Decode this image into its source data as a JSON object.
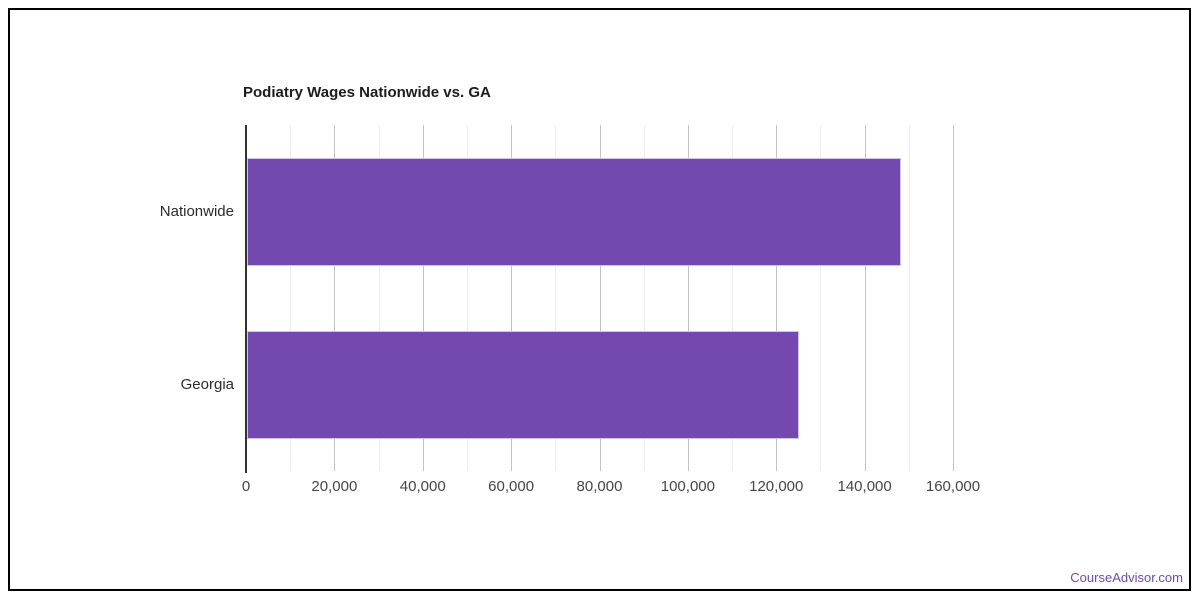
{
  "chart_data": {
    "type": "bar",
    "orientation": "horizontal",
    "title": "Podiatry Wages Nationwide vs. GA",
    "categories": [
      "Nationwide",
      "Georgia"
    ],
    "values": [
      148000,
      125000
    ],
    "xlabel": "",
    "ylabel": "",
    "xlim": [
      0,
      160000
    ],
    "x_major_ticks": [
      0,
      20000,
      40000,
      60000,
      80000,
      100000,
      120000,
      140000,
      160000
    ],
    "x_tick_labels": [
      "0",
      "20,000",
      "40,000",
      "60,000",
      "80,000",
      "100,000",
      "120,000",
      "140,000",
      "160,000"
    ],
    "x_minor_step": 10000,
    "grid": true,
    "legend": "none",
    "colors": {
      "bar_fill": "#7348af",
      "bar_stroke": "#d2c3eb",
      "axis_line": "#333333",
      "gridline_major": "#c2c2c2",
      "gridline_minor": "#ededed",
      "title_text": "#1c1c1c",
      "tick_text": "#454545",
      "category_text": "#2b2b2b"
    }
  },
  "watermark": {
    "text": "CourseAdvisor.com",
    "color": "#6e4baa"
  }
}
